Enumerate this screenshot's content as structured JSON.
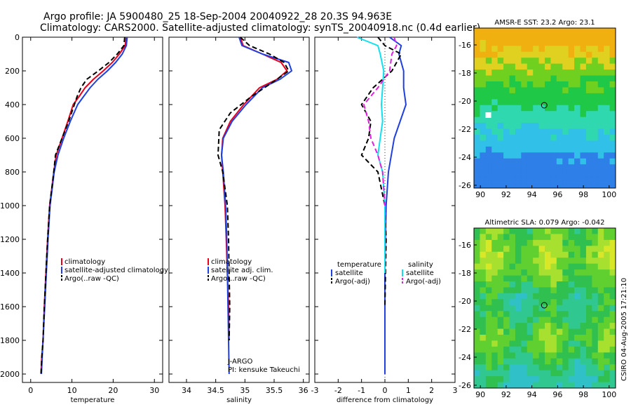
{
  "title_line1": "Argo profile: JA 5900480_25 18-Sep-2004 20040922_28 20.3S 94.963E",
  "title_line2": "Climatology: CARS2000. Satellite-adjusted climatology: synTS_20040918.nc (0.4d earlier)",
  "side_label": "CSIRO 04-Aug-2005 17:21:10",
  "colors": {
    "climatology": "#e8001c",
    "satellite": "#1f3fe0",
    "argo": "#000000",
    "sal_satellite": "#10e0f0",
    "sal_argo": "#e020e0"
  },
  "chart_data": [
    {
      "type": "line",
      "xlabel": "temperature",
      "ylim": [
        2050,
        0
      ],
      "xlim": [
        -2,
        32
      ],
      "xticks": [
        "0",
        "10",
        "20",
        "30"
      ],
      "yticks": [
        "0",
        "200",
        "400",
        "600",
        "800",
        "1000",
        "1200",
        "1400",
        "1600",
        "1800",
        "2000"
      ],
      "legend": {
        "placement": "center-right",
        "entries": [
          "climatology",
          "satellite-adjusted climatology",
          "Argo(..raw -QC)"
        ]
      },
      "series": [
        {
          "name": "climatology",
          "color": "#e8001c",
          "dash": "",
          "x": [
            23.2,
            22.9,
            21.5,
            19.8,
            17.6,
            15.2,
            13.2,
            11.8,
            10.3,
            9.0,
            7.6,
            6.2,
            5.6,
            5.1,
            4.6,
            4.1,
            3.7,
            3.3,
            3.0,
            2.7,
            2.5
          ],
          "y": [
            0,
            50,
            100,
            150,
            200,
            250,
            300,
            350,
            400,
            500,
            600,
            700,
            800,
            900,
            1000,
            1200,
            1400,
            1600,
            1800,
            1900,
            2000
          ]
        },
        {
          "name": "satellite-adjusted climatology",
          "color": "#1f3fe0",
          "dash": "",
          "x": [
            23.4,
            23.2,
            22.2,
            20.6,
            18.6,
            16.3,
            14.4,
            12.9,
            11.4,
            9.6,
            8.0,
            6.6,
            5.7,
            5.2,
            4.7,
            4.2,
            3.8,
            3.4,
            3.0,
            2.8,
            2.6
          ],
          "y": [
            0,
            50,
            100,
            150,
            200,
            250,
            300,
            350,
            400,
            500,
            600,
            700,
            800,
            900,
            1000,
            1200,
            1400,
            1600,
            1800,
            1900,
            2000
          ]
        },
        {
          "name": "Argo(..raw -QC)",
          "color": "#000000",
          "dash": "7,4",
          "x": [
            22.8,
            22.6,
            21.0,
            19.0,
            16.4,
            13.6,
            12.2,
            11.3,
            10.6,
            9.2,
            7.6,
            6.0,
            5.6,
            5.1,
            4.6,
            4.1,
            3.7,
            3.3,
            3.0,
            2.7,
            2.5
          ],
          "y": [
            0,
            50,
            100,
            150,
            200,
            250,
            300,
            350,
            400,
            500,
            600,
            700,
            800,
            900,
            1000,
            1200,
            1400,
            1600,
            1800,
            1900,
            2000
          ]
        }
      ]
    },
    {
      "type": "line",
      "xlabel": "salinity",
      "ylim": [
        2050,
        0
      ],
      "xlim": [
        33.7,
        36.1
      ],
      "xticks": [
        "34",
        "34.5",
        "35",
        "35.5",
        "36"
      ],
      "legend": {
        "placement": "center-right",
        "entries": [
          "climatology",
          "satellite adj. clim.",
          "Argo(..raw -QC)"
        ]
      },
      "annotation": [
        "J-ARGO",
        "PI: kensuke Takeuchi"
      ],
      "series": [
        {
          "name": "climatology",
          "color": "#e8001c",
          "dash": "",
          "x": [
            34.92,
            34.97,
            35.3,
            35.62,
            35.72,
            35.55,
            35.25,
            34.98,
            34.75,
            34.62,
            34.6,
            34.62,
            34.66,
            34.68,
            34.7,
            34.72,
            34.73
          ],
          "y": [
            0,
            50,
            100,
            150,
            200,
            250,
            300,
            400,
            500,
            600,
            700,
            800,
            1000,
            1200,
            1400,
            1600,
            1800
          ]
        },
        {
          "name": "satellite adj. clim.",
          "color": "#1f3fe0",
          "dash": "",
          "x": [
            34.9,
            34.95,
            35.3,
            35.75,
            35.8,
            35.6,
            35.3,
            35.02,
            34.78,
            34.63,
            34.6,
            34.63,
            34.67,
            34.69,
            34.7,
            34.71,
            34.72,
            34.73
          ],
          "y": [
            0,
            50,
            100,
            150,
            200,
            250,
            300,
            400,
            500,
            600,
            700,
            800,
            1000,
            1200,
            1400,
            1600,
            1800,
            2000
          ]
        },
        {
          "name": "Argo(..raw -QC)",
          "color": "#000000",
          "dash": "7,4",
          "x": [
            34.92,
            35.08,
            35.42,
            35.67,
            35.75,
            35.55,
            35.12,
            34.75,
            34.56,
            34.54,
            34.62,
            34.7,
            34.72,
            34.73,
            34.74,
            34.73
          ],
          "y": [
            0,
            50,
            100,
            150,
            200,
            250,
            350,
            450,
            550,
            700,
            800,
            1000,
            1200,
            1400,
            1600,
            1800
          ]
        }
      ]
    },
    {
      "type": "line",
      "xlabel": "difference from climatology",
      "ylim": [
        2050,
        0
      ],
      "xlim": [
        -3,
        3
      ],
      "xticks": [
        "-3",
        "-2",
        "-1",
        "0",
        "1",
        "2",
        "3"
      ],
      "legend": {
        "placement": "lower-center",
        "entries": [
          "temperature",
          "satellite",
          "Argo(-adj)",
          "salinity",
          "satellite",
          "Argo(-adj)"
        ]
      },
      "series": [
        {
          "name": "satellite",
          "color": "#1f3fe0",
          "dash": "",
          "x": [
            0.2,
            0.7,
            0.6,
            0.8,
            0.8,
            0.9,
            0.4,
            0.15,
            0.05,
            0.02,
            0.0,
            0.0,
            0.0
          ],
          "y": [
            0,
            50,
            100,
            200,
            300,
            400,
            600,
            800,
            1000,
            1200,
            1400,
            1600,
            2000
          ]
        },
        {
          "name": "Argo(-adj)",
          "color": "#000000",
          "dash": "7,4",
          "x": [
            -0.3,
            0.0,
            0.7,
            0.3,
            -0.5,
            -1.0,
            -0.6,
            -0.7,
            -1.0,
            -0.3,
            0.0,
            0.05,
            0.0
          ],
          "y": [
            0,
            50,
            100,
            200,
            300,
            400,
            500,
            600,
            700,
            800,
            1000,
            1200,
            1600
          ]
        },
        {
          "name": "satellite",
          "color": "#10e0f0",
          "dash": "",
          "x": [
            -1.2,
            -0.3,
            -0.2,
            -0.05,
            -0.1,
            -0.15,
            -0.1,
            -0.2,
            -0.3,
            -0.1,
            0.0,
            0.0,
            0.0
          ],
          "y": [
            0,
            50,
            100,
            200,
            300,
            400,
            500,
            600,
            700,
            800,
            1000,
            1200,
            1400
          ]
        },
        {
          "name": "Argo(-adj)",
          "color": "#e020e0",
          "dash": "7,4",
          "x": [
            0.4,
            0.5,
            0.3,
            0.2,
            -0.3,
            -0.9,
            -0.7,
            -0.6,
            -0.3,
            -0.1,
            0.0
          ],
          "y": [
            0,
            50,
            100,
            200,
            300,
            400,
            500,
            600,
            700,
            800,
            1000
          ]
        }
      ]
    },
    {
      "type": "heatmap",
      "title": "AMSR-E SST: 23.2 Argo: 23.1",
      "xlim": [
        89.5,
        100.5
      ],
      "ylim": [
        -26.2,
        -14.8
      ],
      "xticks": [
        "90",
        "92",
        "94",
        "96",
        "98",
        "100"
      ],
      "yticks": [
        "-16",
        "-18",
        "-20",
        "-22",
        "-24",
        "-26"
      ],
      "marker": {
        "lon": 94.96,
        "lat": -20.3
      }
    },
    {
      "type": "heatmap",
      "title": "Altimetric SLA: 0.079 Argo: -0.042",
      "xlim": [
        89.5,
        100.5
      ],
      "ylim": [
        -26.2,
        -14.8
      ],
      "xticks": [
        "90",
        "92",
        "94",
        "96",
        "98",
        "100"
      ],
      "yticks": [
        "-16",
        "-18",
        "-20",
        "-22",
        "-24",
        "-26"
      ],
      "marker": {
        "lon": 94.96,
        "lat": -20.3
      }
    }
  ]
}
